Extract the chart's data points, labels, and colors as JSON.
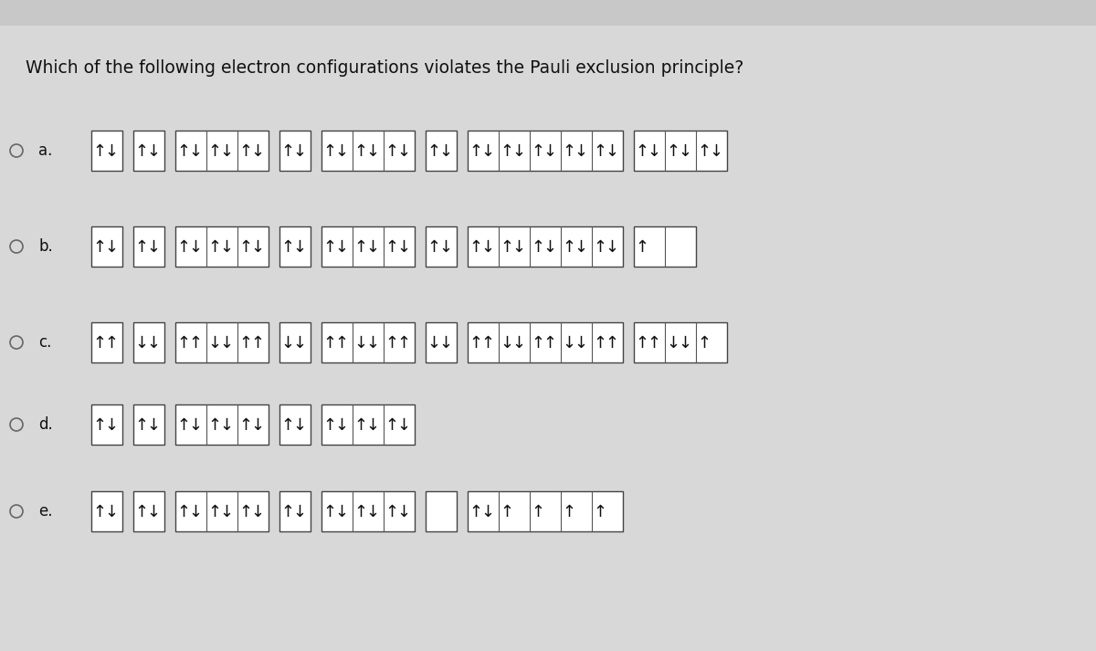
{
  "title": "Which of the following electron configurations violates the Pauli exclusion principle?",
  "bg_color": "#d8d8d8",
  "rows": [
    {
      "label": "a.",
      "groups": [
        [
          [
            "u",
            "d"
          ]
        ],
        [
          [
            "u",
            "d"
          ]
        ],
        [
          [
            "u",
            "d"
          ],
          [
            "u",
            "d"
          ],
          [
            "u",
            "d"
          ]
        ],
        [
          [
            "u",
            "d"
          ]
        ],
        [
          [
            "u",
            "d"
          ],
          [
            "u",
            "d"
          ],
          [
            "u",
            "d"
          ]
        ],
        [
          [
            "u",
            "d"
          ]
        ],
        [
          [
            "u",
            "d"
          ],
          [
            "u",
            "d"
          ],
          [
            "u",
            "d"
          ],
          [
            "u",
            "d"
          ],
          [
            "u",
            "d"
          ]
        ],
        [
          [
            "u",
            "d"
          ],
          [
            "u",
            "d"
          ],
          [
            "u",
            "d"
          ]
        ]
      ]
    },
    {
      "label": "b.",
      "groups": [
        [
          [
            "u",
            "d"
          ]
        ],
        [
          [
            "u",
            "d"
          ]
        ],
        [
          [
            "u",
            "d"
          ],
          [
            "u",
            "d"
          ],
          [
            "u",
            "d"
          ]
        ],
        [
          [
            "u",
            "d"
          ]
        ],
        [
          [
            "u",
            "d"
          ],
          [
            "u",
            "d"
          ],
          [
            "u",
            "d"
          ]
        ],
        [
          [
            "u",
            "d"
          ]
        ],
        [
          [
            "u",
            "d"
          ],
          [
            "u",
            "d"
          ],
          [
            "u",
            "d"
          ],
          [
            "u",
            "d"
          ],
          [
            "u",
            "d"
          ]
        ],
        [
          [
            "u",
            "_"
          ],
          [
            "_",
            "_"
          ]
        ]
      ]
    },
    {
      "label": "c.",
      "groups": [
        [
          [
            "u",
            "u"
          ]
        ],
        [
          [
            "d",
            "d"
          ]
        ],
        [
          [
            "u",
            "u"
          ],
          [
            "d",
            "d"
          ],
          [
            "u",
            "u"
          ]
        ],
        [
          [
            "d",
            "d"
          ]
        ],
        [
          [
            "u",
            "u"
          ],
          [
            "d",
            "d"
          ],
          [
            "u",
            "u"
          ]
        ],
        [
          [
            "d",
            "d"
          ]
        ],
        [
          [
            "u",
            "u"
          ],
          [
            "d",
            "d"
          ],
          [
            "u",
            "u"
          ],
          [
            "d",
            "d"
          ],
          [
            "u",
            "u"
          ]
        ],
        [
          [
            "u",
            "u"
          ],
          [
            "d",
            "d"
          ],
          [
            "u",
            "_"
          ]
        ]
      ]
    },
    {
      "label": "d.",
      "groups": [
        [
          [
            "u",
            "d"
          ]
        ],
        [
          [
            "u",
            "d"
          ]
        ],
        [
          [
            "u",
            "d"
          ],
          [
            "u",
            "d"
          ],
          [
            "u",
            "d"
          ]
        ],
        [
          [
            "u",
            "d"
          ]
        ],
        [
          [
            "u",
            "d"
          ],
          [
            "u",
            "d"
          ],
          [
            "u",
            "d"
          ]
        ]
      ]
    },
    {
      "label": "e.",
      "groups": [
        [
          [
            "u",
            "d"
          ]
        ],
        [
          [
            "u",
            "d"
          ]
        ],
        [
          [
            "u",
            "d"
          ],
          [
            "u",
            "d"
          ],
          [
            "u",
            "d"
          ]
        ],
        [
          [
            "u",
            "d"
          ]
        ],
        [
          [
            "u",
            "d"
          ],
          [
            "u",
            "d"
          ],
          [
            "u",
            "d"
          ]
        ],
        [
          [
            "_",
            "_"
          ]
        ],
        [
          [
            "u",
            "d"
          ],
          [
            "u",
            "_"
          ],
          [
            "u",
            "_"
          ],
          [
            "u",
            "_"
          ],
          [
            "u",
            "_"
          ]
        ]
      ]
    }
  ]
}
